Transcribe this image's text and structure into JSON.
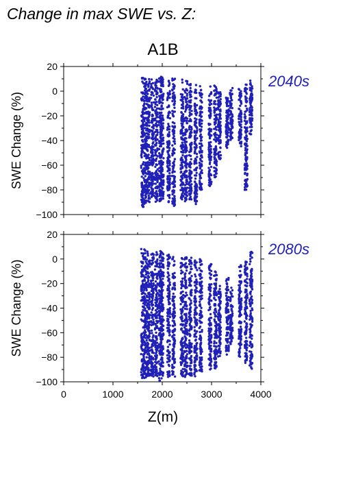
{
  "figure": {
    "title": "Change in max SWE vs. Z:",
    "scenario": "A1B",
    "accent_color": "#2020b8"
  },
  "chart_data": [
    {
      "type": "scatter",
      "panel_label": "2040s",
      "ylabel": "SWE Change (%)",
      "xlabel": "",
      "xlim": [
        0,
        4000
      ],
      "ylim": [
        -100,
        20
      ],
      "y_ticks": [
        "20",
        "0",
        "−20",
        "−40",
        "−60",
        "−80",
        "−100"
      ],
      "x_ticks": [],
      "grid": false,
      "color": "#2020b8",
      "series": [
        {
          "x_min": 1580,
          "x_max": 3880,
          "columns": [
            {
              "x": 1600,
              "ymin": -94,
              "ymax": 12
            },
            {
              "x": 1660,
              "ymin": -92,
              "ymax": 11
            },
            {
              "x": 1720,
              "ymin": -90,
              "ymax": 10
            },
            {
              "x": 1800,
              "ymin": -88,
              "ymax": 10
            },
            {
              "x": 1880,
              "ymin": -90,
              "ymax": 10
            },
            {
              "x": 1960,
              "ymin": -92,
              "ymax": 11
            },
            {
              "x": 2000,
              "ymin": -88,
              "ymax": 12
            },
            {
              "x": 2130,
              "ymin": -90,
              "ymax": 11
            },
            {
              "x": 2230,
              "ymin": -93,
              "ymax": 11
            },
            {
              "x": 2400,
              "ymin": -88,
              "ymax": 10
            },
            {
              "x": 2480,
              "ymin": -90,
              "ymax": 9
            },
            {
              "x": 2570,
              "ymin": -88,
              "ymax": 8
            },
            {
              "x": 2680,
              "ymin": -92,
              "ymax": 6
            },
            {
              "x": 2780,
              "ymin": -80,
              "ymax": 5
            },
            {
              "x": 2970,
              "ymin": -78,
              "ymax": 4
            },
            {
              "x": 3080,
              "ymin": -70,
              "ymax": 5
            },
            {
              "x": 3160,
              "ymin": -55,
              "ymax": 2
            },
            {
              "x": 3320,
              "ymin": -48,
              "ymax": -5
            },
            {
              "x": 3400,
              "ymin": -40,
              "ymax": 3
            },
            {
              "x": 3580,
              "ymin": -45,
              "ymax": 2
            },
            {
              "x": 3700,
              "ymin": -80,
              "ymax": 6
            },
            {
              "x": 3800,
              "ymin": -35,
              "ymax": 9
            }
          ]
        }
      ]
    },
    {
      "type": "scatter",
      "panel_label": "2080s",
      "ylabel": "SWE Change (%)",
      "xlabel": "Z(m)",
      "xlim": [
        0,
        4000
      ],
      "ylim": [
        -100,
        20
      ],
      "y_ticks": [
        "20",
        "0",
        "−20",
        "−40",
        "−60",
        "−80",
        "−100"
      ],
      "x_ticks": [
        "0",
        "1000",
        "2000",
        "3000",
        "4000"
      ],
      "grid": false,
      "color": "#2020b8",
      "series": [
        {
          "x_min": 1580,
          "x_max": 3880,
          "columns": [
            {
              "x": 1600,
              "ymin": -97,
              "ymax": 9
            },
            {
              "x": 1660,
              "ymin": -97,
              "ymax": 8
            },
            {
              "x": 1720,
              "ymin": -96,
              "ymax": 7
            },
            {
              "x": 1800,
              "ymin": -96,
              "ymax": 6
            },
            {
              "x": 1880,
              "ymin": -96,
              "ymax": 7
            },
            {
              "x": 1960,
              "ymin": -100,
              "ymax": 8
            },
            {
              "x": 2000,
              "ymin": -96,
              "ymax": 7
            },
            {
              "x": 2130,
              "ymin": -96,
              "ymax": 6
            },
            {
              "x": 2230,
              "ymin": -97,
              "ymax": 5
            },
            {
              "x": 2400,
              "ymin": -96,
              "ymax": 4
            },
            {
              "x": 2480,
              "ymin": -96,
              "ymax": 2
            },
            {
              "x": 2570,
              "ymin": -95,
              "ymax": 1
            },
            {
              "x": 2680,
              "ymin": -96,
              "ymax": 0
            },
            {
              "x": 2780,
              "ymin": -92,
              "ymax": 2
            },
            {
              "x": 2970,
              "ymin": -90,
              "ymax": -2
            },
            {
              "x": 3080,
              "ymin": -90,
              "ymax": -10
            },
            {
              "x": 3160,
              "ymin": -80,
              "ymax": -20
            },
            {
              "x": 3320,
              "ymin": -80,
              "ymax": -15
            },
            {
              "x": 3400,
              "ymin": -70,
              "ymax": -20
            },
            {
              "x": 3580,
              "ymin": -80,
              "ymax": -5
            },
            {
              "x": 3700,
              "ymin": -85,
              "ymax": -2
            },
            {
              "x": 3800,
              "ymin": -90,
              "ymax": 6
            }
          ]
        }
      ]
    }
  ]
}
